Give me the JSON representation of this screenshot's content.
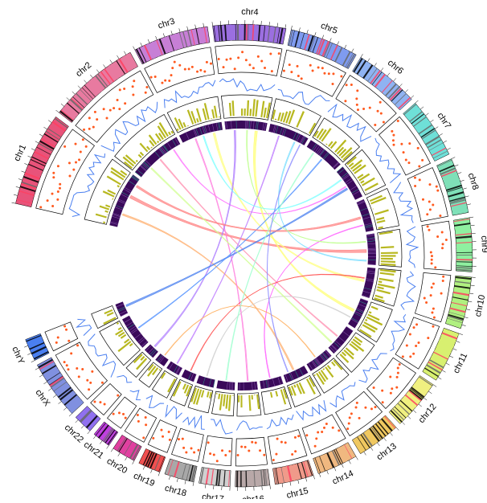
{
  "chart_data": {
    "type": "circos",
    "chromosomes": [
      {
        "name": "chr1",
        "size": 249,
        "color": "#e8537a"
      },
      {
        "name": "chr2",
        "size": 243,
        "color": "#e87aa0"
      },
      {
        "name": "chr3",
        "size": 198,
        "color": "#c77fd6"
      },
      {
        "name": "chr4",
        "size": 191,
        "color": "#9b6fe0"
      },
      {
        "name": "chr5",
        "size": 181,
        "color": "#7f9bf0"
      },
      {
        "name": "chr6",
        "size": 171,
        "color": "#8fb3f2"
      },
      {
        "name": "chr7",
        "size": 159,
        "color": "#6fe0d8"
      },
      {
        "name": "chr8",
        "size": 146,
        "color": "#7fe0b8"
      },
      {
        "name": "chr9",
        "size": 141,
        "color": "#8ff0a0"
      },
      {
        "name": "chr10",
        "size": 136,
        "color": "#b0f080"
      },
      {
        "name": "chr11",
        "size": 135,
        "color": "#d8f070"
      },
      {
        "name": "chr12",
        "size": 133,
        "color": "#f0f080"
      },
      {
        "name": "chr13",
        "size": 115,
        "color": "#f0c860"
      },
      {
        "name": "chr14",
        "size": 107,
        "color": "#f0b880"
      },
      {
        "name": "chr15",
        "size": 102,
        "color": "#f09a8a"
      },
      {
        "name": "chr16",
        "size": 90,
        "color": "#b8a8a8"
      },
      {
        "name": "chr17",
        "size": 81,
        "color": "#d0d0d0"
      },
      {
        "name": "chr18",
        "size": 78,
        "color": "#a8a8a8"
      },
      {
        "name": "chr19",
        "size": 59,
        "color": "#f05050"
      },
      {
        "name": "chr20",
        "size": 63,
        "color": "#e040a0"
      },
      {
        "name": "chr21",
        "size": 48,
        "color": "#c040e0"
      },
      {
        "name": "chr22",
        "size": 51,
        "color": "#9070f0"
      },
      {
        "name": "chrX",
        "size": 155,
        "color": "#8090e0"
      },
      {
        "name": "chrY",
        "size": 59,
        "color": "#4a7ff0"
      }
    ],
    "links": [
      {
        "from": "chr1",
        "start": 150,
        "to": "chr9",
        "end": 70,
        "width": 14,
        "color": "#ff7f7f"
      },
      {
        "from": "chr1",
        "start": 60,
        "to": "chr14",
        "end": 50,
        "width": 8,
        "color": "#ffb070"
      },
      {
        "from": "chr2",
        "start": 120,
        "to": "chr12",
        "end": 60,
        "width": 6,
        "color": "#ff8fb0"
      },
      {
        "from": "chr2",
        "start": 200,
        "to": "chr7",
        "end": 80,
        "width": 5,
        "color": "#ff70ff"
      },
      {
        "from": "chr3",
        "start": 60,
        "to": "chr16",
        "end": 40,
        "width": 6,
        "color": "#ff80e0"
      },
      {
        "from": "chr3",
        "start": 150,
        "to": "chr10",
        "end": 60,
        "width": 10,
        "color": "#ffff80"
      },
      {
        "from": "chr4",
        "start": 40,
        "to": "chr22",
        "end": 25,
        "width": 8,
        "color": "#b080ff"
      },
      {
        "from": "chr4",
        "start": 140,
        "to": "chr11",
        "end": 60,
        "width": 12,
        "color": "#ffff70"
      },
      {
        "from": "chr5",
        "start": 50,
        "to": "chr20",
        "end": 30,
        "width": 5,
        "color": "#c080ff"
      },
      {
        "from": "chr5",
        "start": 130,
        "to": "chr9",
        "end": 120,
        "width": 6,
        "color": "#80e0ff"
      },
      {
        "from": "chrY",
        "start": 30,
        "to": "chr7",
        "end": 90,
        "width": 9,
        "color": "#4a80f0"
      },
      {
        "from": "chrX",
        "start": 80,
        "to": "chr6",
        "end": 90,
        "width": 5,
        "color": "#5090ff"
      },
      {
        "from": "chr8",
        "start": 70,
        "to": "chr1",
        "end": 210,
        "width": 10,
        "color": "#ff8080"
      },
      {
        "from": "chr8",
        "start": 110,
        "to": "chr15",
        "end": 50,
        "width": 4,
        "color": "#ff60ff"
      },
      {
        "from": "chr10",
        "start": 50,
        "to": "chr19",
        "end": 30,
        "width": 4,
        "color": "#ff5050"
      },
      {
        "from": "chr11",
        "start": 100,
        "to": "chr18",
        "end": 40,
        "width": 4,
        "color": "#d0d0d0"
      },
      {
        "from": "chr12",
        "start": 100,
        "to": "chr2",
        "end": 60,
        "width": 7,
        "color": "#d0ff90"
      },
      {
        "from": "chr13",
        "start": 60,
        "to": "chr21",
        "end": 25,
        "width": 4,
        "color": "#ffb060"
      },
      {
        "from": "chr6",
        "start": 40,
        "to": "chr17",
        "end": 40,
        "width": 5,
        "color": "#a0ffd0"
      },
      {
        "from": "chr7",
        "start": 40,
        "to": "chr3",
        "end": 100,
        "width": 6,
        "color": "#80ffff"
      },
      {
        "from": "chr9",
        "start": 30,
        "to": "chr4",
        "end": 100,
        "width": 5,
        "color": "#c0ff90"
      },
      {
        "from": "chr14",
        "start": 80,
        "to": "chr5",
        "end": 160,
        "width": 4,
        "color": "#9090ff"
      }
    ]
  }
}
